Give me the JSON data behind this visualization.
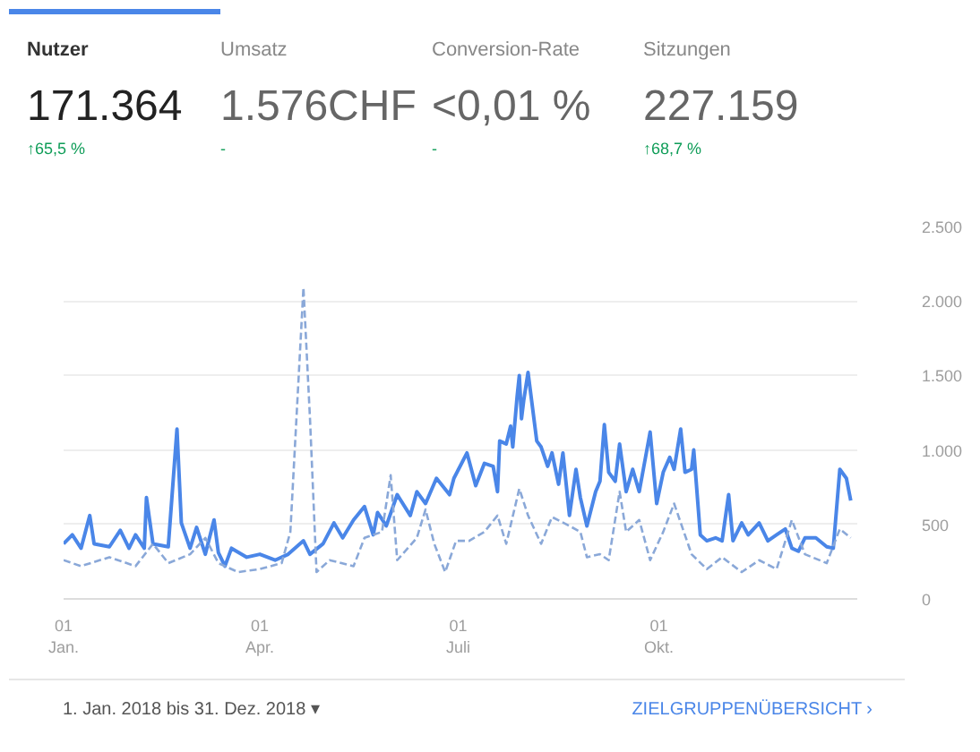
{
  "chart_data": {
    "type": "line",
    "annotations": [
      "Nutzer",
      "Umsatz",
      "Conversion-Rate",
      "Sitzungen",
      "171.364",
      "1.576CHF",
      "<0,01 %",
      "227.159",
      "↑65,5 %",
      "-",
      "-",
      "↑68,7 %",
      "1. Jan. 2018 bis 31. Dez. 2018 ▾",
      "ZIELGRUPPENÜBERSICHT ›"
    ],
    "series": [
      {
        "color": "#4a86e8",
        "line_style": "solid",
        "x": [
          "2018-01-01",
          "2018-01-05",
          "2018-01-09",
          "2018-01-13",
          "2018-01-15",
          "2018-01-22",
          "2018-01-27",
          "2018-01-31",
          "2018-02-03",
          "2018-02-07",
          "2018-02-08",
          "2018-02-11",
          "2018-02-18",
          "2018-02-22",
          "2018-02-24",
          "2018-02-28",
          "2018-03-03",
          "2018-03-07",
          "2018-03-11",
          "2018-03-13",
          "2018-03-16",
          "2018-03-19",
          "2018-03-26",
          "2018-04-01",
          "2018-04-08",
          "2018-04-14",
          "2018-04-21",
          "2018-04-24",
          "2018-04-30",
          "2018-05-05",
          "2018-05-09",
          "2018-05-14",
          "2018-05-19",
          "2018-05-23",
          "2018-05-25",
          "2018-05-29",
          "2018-06-03",
          "2018-06-09",
          "2018-06-12",
          "2018-06-16",
          "2018-06-21",
          "2018-06-27",
          "2018-06-29",
          "2018-07-05",
          "2018-07-09",
          "2018-07-13",
          "2018-07-17",
          "2018-07-19",
          "2018-07-20",
          "2018-07-23",
          "2018-07-25",
          "2018-07-26",
          "2018-07-28",
          "2018-07-29",
          "2018-07-30",
          "2018-07-31",
          "2018-08-02",
          "2018-08-06",
          "2018-08-08",
          "2018-08-11",
          "2018-08-13",
          "2018-08-16",
          "2018-08-18",
          "2018-08-21",
          "2018-08-24",
          "2018-08-26",
          "2018-08-29",
          "2018-09-02",
          "2018-09-04",
          "2018-09-06",
          "2018-09-08",
          "2018-09-11",
          "2018-09-13",
          "2018-09-16",
          "2018-09-19",
          "2018-09-22",
          "2018-09-25",
          "2018-09-27",
          "2018-09-30",
          "2018-10-03",
          "2018-10-06",
          "2018-10-08",
          "2018-10-11",
          "2018-10-13",
          "2018-10-16",
          "2018-10-17",
          "2018-10-20",
          "2018-10-23",
          "2018-10-27",
          "2018-10-30",
          "2018-11-02",
          "2018-11-04",
          "2018-11-08",
          "2018-11-11",
          "2018-11-16",
          "2018-11-20",
          "2018-11-24",
          "2018-11-28",
          "2018-12-01",
          "2018-12-04",
          "2018-12-07",
          "2018-12-12",
          "2018-12-17",
          "2018-12-20",
          "2018-12-23",
          "2018-12-26",
          "2018-12-28"
        ],
        "values": [
          370,
          430,
          340,
          560,
          370,
          350,
          460,
          340,
          430,
          340,
          680,
          370,
          350,
          1140,
          510,
          340,
          480,
          300,
          530,
          310,
          220,
          340,
          280,
          300,
          260,
          300,
          390,
          300,
          370,
          510,
          410,
          530,
          620,
          430,
          580,
          490,
          700,
          560,
          720,
          640,
          810,
          700,
          810,
          980,
          760,
          910,
          890,
          720,
          1060,
          1040,
          1160,
          1020,
          1360,
          1500,
          1210,
          1330,
          1520,
          1060,
          1020,
          890,
          980,
          770,
          980,
          560,
          870,
          680,
          490,
          720,
          790,
          1170,
          850,
          790,
          1040,
          720,
          870,
          720,
          960,
          1120,
          640,
          850,
          950,
          870,
          1140,
          850,
          870,
          1000,
          430,
          390,
          410,
          390,
          700,
          390,
          510,
          430,
          510,
          390,
          430,
          470,
          340,
          320,
          410,
          410,
          350,
          340,
          870,
          810,
          660
        ]
      },
      {
        "color": "#8aa8d8",
        "line_style": "dashed",
        "x": [
          "2018-01-01",
          "2018-01-09",
          "2018-01-22",
          "2018-02-03",
          "2018-02-11",
          "2018-02-18",
          "2018-02-28",
          "2018-03-07",
          "2018-03-13",
          "2018-03-22",
          "2018-04-01",
          "2018-04-11",
          "2018-04-15",
          "2018-04-21",
          "2018-04-24",
          "2018-04-27",
          "2018-05-03",
          "2018-05-14",
          "2018-05-19",
          "2018-05-27",
          "2018-05-31",
          "2018-06-03",
          "2018-06-12",
          "2018-06-16",
          "2018-06-20",
          "2018-06-25",
          "2018-06-30",
          "2018-07-06",
          "2018-07-13",
          "2018-07-19",
          "2018-07-23",
          "2018-07-29",
          "2018-08-02",
          "2018-08-08",
          "2018-08-13",
          "2018-08-21",
          "2018-08-26",
          "2018-08-29",
          "2018-09-04",
          "2018-09-08",
          "2018-09-13",
          "2018-09-16",
          "2018-09-22",
          "2018-09-27",
          "2018-10-03",
          "2018-10-08",
          "2018-10-16",
          "2018-10-23",
          "2018-10-30",
          "2018-11-08",
          "2018-11-16",
          "2018-11-24",
          "2018-12-01",
          "2018-12-07",
          "2018-12-17",
          "2018-12-23",
          "2018-12-28"
        ],
        "values": [
          260,
          220,
          280,
          220,
          370,
          240,
          300,
          410,
          240,
          180,
          200,
          240,
          450,
          2090,
          1210,
          180,
          260,
          220,
          410,
          450,
          830,
          260,
          410,
          600,
          370,
          180,
          390,
          390,
          450,
          560,
          370,
          740,
          560,
          370,
          550,
          490,
          450,
          280,
          300,
          260,
          720,
          450,
          530,
          260,
          450,
          640,
          300,
          200,
          280,
          180,
          260,
          200,
          530,
          300,
          240,
          470,
          410
        ]
      }
    ],
    "xlim": [
      "2018-01-01",
      "2018-12-31"
    ],
    "xticks": [
      {
        "value": "2018-01-01",
        "label": "01\nJan."
      },
      {
        "value": "2018-04-01",
        "label": "01\nApr."
      },
      {
        "value": "2018-07-01",
        "label": "01\nJuli"
      },
      {
        "value": "2018-10-01",
        "label": "01\nOkt."
      }
    ],
    "ylim": [
      0,
      2500
    ],
    "yticks": [
      0,
      500,
      {
        "value": 1000,
        "label": "1.000"
      },
      {
        "value": 1500,
        "label": "1.500"
      },
      {
        "value": 2000,
        "label": "2.000"
      },
      {
        "value": 2500,
        "label": "2.500"
      }
    ],
    "grid": "y"
  }
}
